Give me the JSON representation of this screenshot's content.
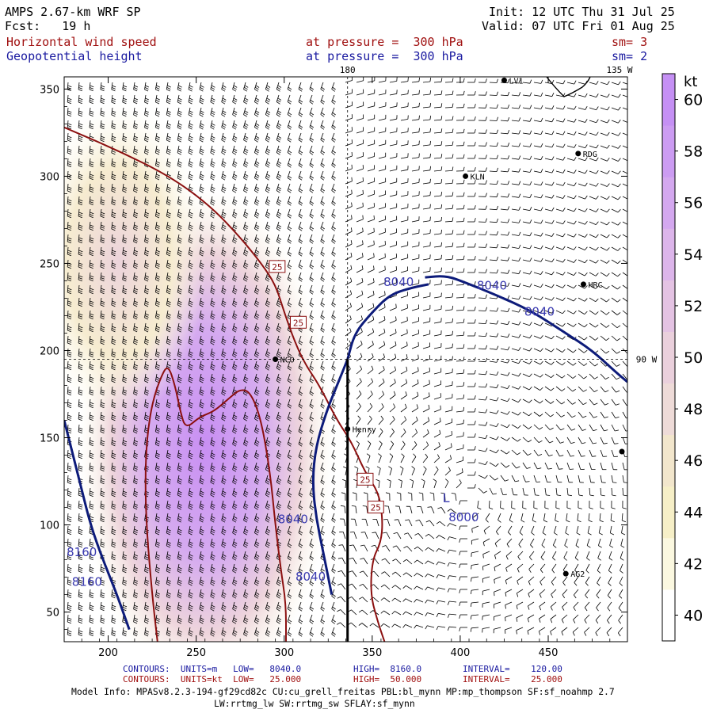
{
  "header": {
    "model": "AMPS 2.67-km WRF SP",
    "init": "Init: 12 UTC Thu 31 Jul 25",
    "fcst": "Fcst:   19 h",
    "valid": "Valid: 07 UTC Fri 01 Aug 25",
    "field1_name": "Horizontal wind speed",
    "field1_level": "at pressure =  300 hPa",
    "field1_sm": "sm= 3",
    "field2_name": "Geopotential height",
    "field2_level": "at pressure =  300 hPa",
    "field2_sm": "sm= 2"
  },
  "map_labels": {
    "lon_180": "180",
    "lon_135w": "135 W",
    "lon_90w": "90 W",
    "stations": [
      {
        "name": "NCO",
        "x": 295,
        "y": 195
      },
      {
        "name": "Henry",
        "x": 336,
        "y": 155
      },
      {
        "name": "KLN",
        "x": 403,
        "y": 300
      },
      {
        "name": "RDG",
        "x": 467,
        "y": 313
      },
      {
        "name": "HRC",
        "x": 470,
        "y": 238
      },
      {
        "name": "AG2",
        "x": 460,
        "y": 72
      },
      {
        "name": "LV1",
        "x": 425,
        "y": 355
      }
    ],
    "low_marker": "L",
    "low_value": "8000"
  },
  "colors": {
    "height_contour": "#0d1b7a",
    "wind_contour": "#8b1010",
    "label_box": "#8b1010",
    "barb": "#000000"
  },
  "colorbar": {
    "unit": "kt",
    "ticks": [
      "40",
      "42",
      "44",
      "46",
      "48",
      "50",
      "52",
      "54",
      "56",
      "58",
      "60"
    ],
    "colors": [
      "#ffffff",
      "#fbf8e0",
      "#f6efc7",
      "#f2e6cc",
      "#eedbd8",
      "#ead0dc",
      "#e4c3e3",
      "#dcb5ea",
      "#d4a8ef",
      "#cc9cf2",
      "#c590f4"
    ]
  },
  "chart_data": {
    "type": "heatmap",
    "title": "Horizontal wind speed / Geopotential height at pressure = 300 hPa",
    "xlim": [
      175,
      495
    ],
    "ylim": [
      33,
      357
    ],
    "x_ticks": [
      "200",
      "250",
      "300",
      "350",
      "400",
      "450"
    ],
    "y_ticks": [
      "50",
      "100",
      "150",
      "200",
      "250",
      "300",
      "350"
    ],
    "height_contours": [
      {
        "value": "8040",
        "points": [
          [
            336,
            195
          ],
          [
            340,
            210
          ],
          [
            350,
            222
          ],
          [
            360,
            232
          ],
          [
            372,
            236
          ],
          [
            382,
            238
          ]
        ]
      },
      {
        "value": "8040",
        "points": [
          [
            336,
            195
          ],
          [
            330,
            180
          ],
          [
            324,
            165
          ],
          [
            318,
            145
          ],
          [
            316,
            125
          ],
          [
            318,
            105
          ],
          [
            322,
            85
          ],
          [
            327,
            60
          ]
        ]
      },
      {
        "value": "8040",
        "points": [
          [
            380,
            242
          ],
          [
            392,
            243
          ],
          [
            403,
            239
          ],
          [
            420,
            232
          ],
          [
            440,
            223
          ],
          [
            460,
            210
          ],
          [
            475,
            200
          ],
          [
            488,
            188
          ],
          [
            495,
            182
          ]
        ]
      },
      {
        "value": "8160",
        "points": [
          [
            175,
            160
          ],
          [
            180,
            140
          ],
          [
            185,
            120
          ],
          [
            190,
            100
          ],
          [
            197,
            80
          ],
          [
            205,
            60
          ],
          [
            212,
            40
          ]
        ]
      }
    ],
    "wind_contours": [
      {
        "value": "25",
        "points": [
          [
            175,
            328
          ],
          [
            205,
            315
          ],
          [
            235,
            300
          ],
          [
            258,
            283
          ],
          [
            275,
            265
          ],
          [
            287,
            250
          ],
          [
            295,
            238
          ],
          [
            300,
            222
          ],
          [
            306,
            205
          ],
          [
            312,
            192
          ],
          [
            320,
            180
          ],
          [
            330,
            160
          ],
          [
            338,
            148
          ],
          [
            346,
            130
          ],
          [
            354,
            118
          ],
          [
            356,
            102
          ],
          [
            355,
            90
          ],
          [
            350,
            80
          ],
          [
            349,
            60
          ],
          [
            353,
            45
          ],
          [
            357,
            33
          ]
        ]
      },
      {
        "value": "50",
        "points": [
          [
            228,
            33
          ],
          [
            225,
            60
          ],
          [
            222,
            95
          ],
          [
            221,
            125
          ],
          [
            222,
            150
          ],
          [
            225,
            170
          ],
          [
            230,
            185
          ],
          [
            234,
            192
          ],
          [
            238,
            180
          ],
          [
            241,
            165
          ],
          [
            244,
            155
          ],
          [
            252,
            162
          ],
          [
            260,
            165
          ],
          [
            268,
            172
          ],
          [
            275,
            178
          ],
          [
            281,
            176
          ],
          [
            287,
            160
          ],
          [
            292,
            130
          ],
          [
            295,
            100
          ],
          [
            298,
            75
          ],
          [
            301,
            55
          ],
          [
            301,
            33
          ]
        ]
      }
    ],
    "contour_labels": [
      {
        "text": "8040",
        "x": 365,
        "y": 237
      },
      {
        "text": "8040",
        "x": 418,
        "y": 235
      },
      {
        "text": "8040",
        "x": 445,
        "y": 220
      },
      {
        "text": "8040",
        "x": 305,
        "y": 101
      },
      {
        "text": "8040",
        "x": 315,
        "y": 68
      },
      {
        "text": "8160",
        "x": 185,
        "y": 82
      },
      {
        "text": "8160",
        "x": 188,
        "y": 65
      },
      {
        "text": "25",
        "x": 296,
        "y": 248
      },
      {
        "text": "25",
        "x": 308,
        "y": 216
      },
      {
        "text": "25",
        "x": 346,
        "y": 126
      },
      {
        "text": "25",
        "x": 352,
        "y": 110
      }
    ]
  },
  "footer": {
    "line1_label": "CONTOURS:  UNITS=m   LOW=   8040.0",
    "line1_high": "HIGH=  8160.0",
    "line1_int": "INTERVAL=    120.00",
    "line2_label": "CONTOURS:  UNITS=kt  LOW=   25.000",
    "line2_high": "HIGH=  50.000",
    "line2_int": "INTERVAL=    25.000",
    "model_info": "Model Info: MPASv8.2.3-194-gf29cd82c CU:cu_grell_freitas PBL:bl_mynn MP:mp_thompson SF:sf_noahmp 2.7",
    "model_info2": "LW:rrtmg_lw SW:rrtmg_sw SFLAY:sf_mynn"
  }
}
